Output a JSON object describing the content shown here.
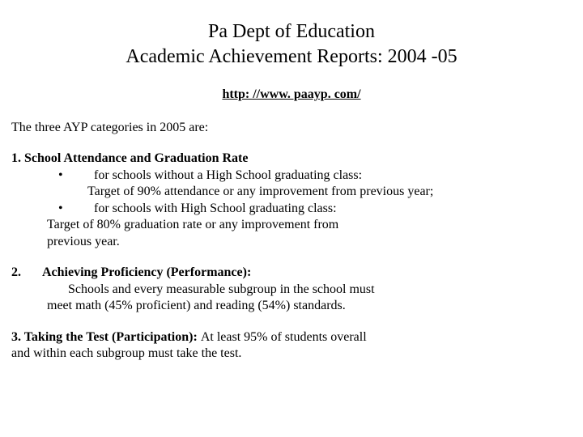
{
  "title_line1": "Pa Dept of Education",
  "title_line2": "Academic Achievement Reports: 2004 -05",
  "link_text": "http: //www. paayp. com/",
  "intro": "The three AYP categories in 2005 are:",
  "cat1": {
    "heading": "1.  School Attendance and Graduation Rate",
    "bullet1": "for schools without a High School graduating class:",
    "bullet1_cont": "Target of 90% attendance or any improvement from previous year;",
    "bullet2": "for schools with High School graduating class:",
    "tail1": "Target of 80% graduation rate or any improvement from",
    "tail2": "previous year."
  },
  "cat2": {
    "number": "2.",
    "title": "Achieving Proficiency (Performance):",
    "body1": "Schools and every measurable subgroup in the school must",
    "body2": "meet math (45% proficient) and reading (54%)  standards."
  },
  "cat3": {
    "title": "3.   Taking the Test (Participation):  ",
    "rest1": "At least 95% of students overall",
    "rest2": "and within each subgroup must take the test."
  },
  "bullet_glyph": "•"
}
